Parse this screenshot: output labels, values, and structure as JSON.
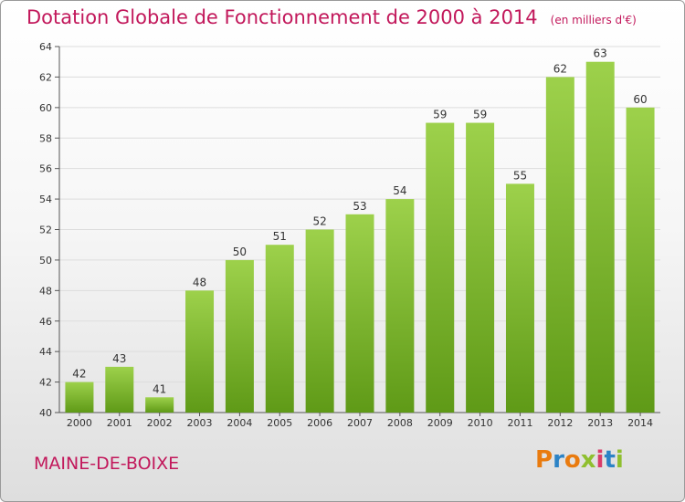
{
  "header": {
    "title": "Dotation Globale de Fonctionnement de 2000 à 2014",
    "unit": "(en milliers d'€)"
  },
  "footer": {
    "commune": "MAINE-DE-BOIXE",
    "brand": "Proxiti",
    "brand_colors": [
      "#e97b0f",
      "#2c83c6",
      "#e97b0f",
      "#8fbf2f",
      "#d93c6a",
      "#2c83c6",
      "#8fbf2f"
    ]
  },
  "colors": {
    "title": "#c2185b",
    "bar_top": "#9dd14b",
    "bar_bottom": "#5f9a17",
    "grid": "#dddddd"
  },
  "chart_data": {
    "type": "bar",
    "title": "Dotation Globale de Fonctionnement de 2000 à 2014",
    "subtitle": "(en milliers d'€)",
    "categories": [
      "2000",
      "2001",
      "2002",
      "2003",
      "2004",
      "2005",
      "2006",
      "2007",
      "2008",
      "2009",
      "2010",
      "2011",
      "2012",
      "2013",
      "2014"
    ],
    "values": [
      42,
      43,
      41,
      48,
      50,
      51,
      52,
      53,
      54,
      59,
      59,
      55,
      62,
      63,
      60
    ],
    "ylim": [
      40,
      64
    ],
    "yticks": [
      40,
      42,
      44,
      46,
      48,
      50,
      52,
      54,
      56,
      58,
      60,
      62,
      64
    ],
    "grid": true
  }
}
